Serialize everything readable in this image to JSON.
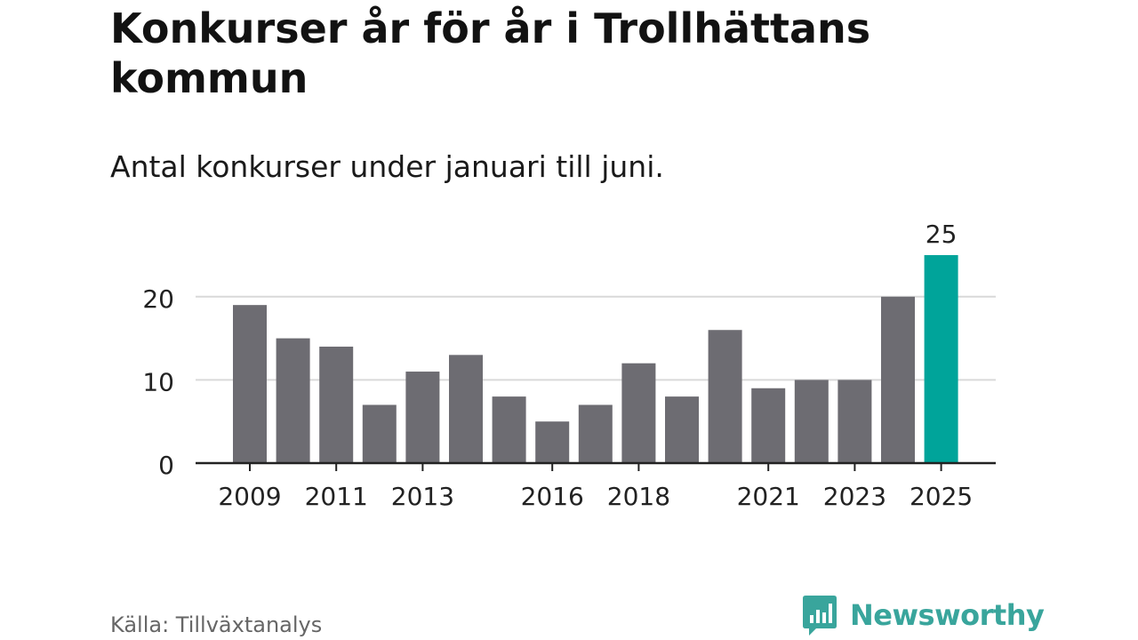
{
  "title": "Konkurser år för år i Trollhättans kommun",
  "subtitle": "Antal konkurser under januari till juni.",
  "source": "Källa: Tillväxtanalys",
  "brand": {
    "name": "Newsworthy",
    "icon": "newsworthy-logo-icon",
    "color": "#39a59c"
  },
  "chart_data": {
    "type": "bar",
    "categories": [
      "2009",
      "2010",
      "2011",
      "2012",
      "2013",
      "2014",
      "2015",
      "2016",
      "2017",
      "2018",
      "2019",
      "2020",
      "2021",
      "2022",
      "2023",
      "2024",
      "2025"
    ],
    "values": [
      19,
      15,
      14,
      7,
      11,
      13,
      8,
      5,
      7,
      12,
      8,
      16,
      9,
      10,
      10,
      20,
      25
    ],
    "tick_labels_shown": [
      "2009",
      "2011",
      "2013",
      "2016",
      "2018",
      "2021",
      "2023",
      "2025"
    ],
    "ylim": [
      0,
      25
    ],
    "yticks": [
      0,
      10,
      20
    ],
    "grid": true,
    "highlight": {
      "category": "2025",
      "label": "25",
      "color": "#00a49a"
    },
    "bar_color": "#6d6c72",
    "xlabel": "",
    "ylabel": ""
  }
}
